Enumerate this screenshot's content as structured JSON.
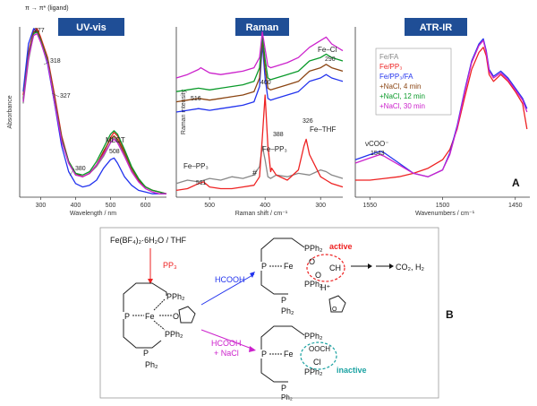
{
  "chart_data": [
    {
      "type": "line",
      "title": "UV-vis",
      "xlabel": "Wavelength / nm",
      "ylabel": "Absorbance",
      "xlim": [
        240,
        660
      ],
      "ylim": [
        0,
        1
      ],
      "xticks": [
        "300",
        "400",
        "500",
        "600"
      ],
      "annotations": [
        "π → π* (ligand)",
        "277",
        "318",
        "327",
        "380",
        "MLCT",
        "508"
      ],
      "series": [
        {
          "name": "Fe/FA",
          "color": "#888888",
          "x": [
            250,
            265,
            280,
            290,
            300,
            320,
            340,
            360,
            380,
            400,
            420,
            440,
            460,
            480,
            500,
            510,
            520,
            540,
            560,
            580,
            600,
            620,
            640,
            660
          ],
          "y": [
            0.55,
            0.8,
            0.96,
            0.98,
            0.93,
            0.8,
            0.55,
            0.33,
            0.2,
            0.13,
            0.12,
            0.14,
            0.18,
            0.24,
            0.32,
            0.35,
            0.33,
            0.25,
            0.16,
            0.1,
            0.06,
            0.04,
            0.03,
            0.02
          ]
        },
        {
          "name": "Fe/PP3",
          "color": "#ee2222",
          "x": [
            250,
            265,
            280,
            290,
            300,
            320,
            340,
            360,
            380,
            400,
            420,
            440,
            460,
            480,
            500,
            510,
            520,
            540,
            560,
            580,
            600,
            620,
            640,
            660
          ],
          "y": [
            0.6,
            0.85,
            0.98,
            0.99,
            0.94,
            0.82,
            0.6,
            0.36,
            0.21,
            0.14,
            0.12,
            0.14,
            0.19,
            0.26,
            0.35,
            0.38,
            0.36,
            0.27,
            0.17,
            0.1,
            0.06,
            0.04,
            0.03,
            0.02
          ]
        },
        {
          "name": "Fe/PP3/FA",
          "color": "#2233ee",
          "x": [
            250,
            265,
            280,
            290,
            300,
            320,
            340,
            360,
            380,
            400,
            420,
            440,
            460,
            480,
            500,
            510,
            520,
            540,
            560,
            580,
            600,
            620,
            640,
            660
          ],
          "y": [
            0.62,
            0.9,
            0.99,
            0.97,
            0.92,
            0.78,
            0.55,
            0.3,
            0.15,
            0.08,
            0.06,
            0.07,
            0.1,
            0.17,
            0.22,
            0.23,
            0.2,
            0.12,
            0.07,
            0.04,
            0.03,
            0.02,
            0.02,
            0.02
          ]
        },
        {
          "name": "+NaCl, 4 min",
          "color": "#8b4513",
          "x": [
            250,
            265,
            280,
            290,
            300,
            320,
            340,
            360,
            380,
            400,
            420,
            440,
            460,
            480,
            500,
            510,
            520,
            540,
            560,
            580,
            600,
            620,
            640,
            660
          ],
          "y": [
            0.58,
            0.84,
            0.97,
            0.98,
            0.93,
            0.81,
            0.58,
            0.35,
            0.21,
            0.14,
            0.12,
            0.14,
            0.19,
            0.27,
            0.34,
            0.36,
            0.34,
            0.26,
            0.17,
            0.1,
            0.06,
            0.04,
            0.03,
            0.02
          ]
        },
        {
          "name": "+NaCl, 12 min",
          "color": "#0a9a2a",
          "x": [
            250,
            265,
            280,
            290,
            300,
            320,
            340,
            360,
            380,
            400,
            420,
            440,
            460,
            480,
            500,
            510,
            520,
            540,
            560,
            580,
            600,
            620,
            640,
            660
          ],
          "y": [
            0.57,
            0.83,
            0.96,
            0.97,
            0.92,
            0.8,
            0.57,
            0.34,
            0.21,
            0.14,
            0.13,
            0.15,
            0.21,
            0.29,
            0.37,
            0.39,
            0.37,
            0.28,
            0.18,
            0.11,
            0.06,
            0.04,
            0.03,
            0.02
          ]
        },
        {
          "name": "+NaCl, 30 min",
          "color": "#cc22cc",
          "x": [
            250,
            265,
            280,
            290,
            300,
            320,
            340,
            360,
            380,
            400,
            420,
            440,
            460,
            480,
            500,
            510,
            520,
            540,
            560,
            580,
            600,
            620,
            640,
            660
          ],
          "y": [
            0.56,
            0.82,
            0.95,
            0.96,
            0.91,
            0.79,
            0.56,
            0.33,
            0.2,
            0.13,
            0.12,
            0.14,
            0.19,
            0.25,
            0.32,
            0.34,
            0.32,
            0.24,
            0.15,
            0.09,
            0.05,
            0.03,
            0.02,
            0.02
          ]
        }
      ]
    },
    {
      "type": "line",
      "title": "Raman",
      "xlabel": "Raman shift / cm⁻¹",
      "ylabel": "Raman intensity",
      "xlim": [
        560,
        260
      ],
      "ylim": [
        0,
        1
      ],
      "xticks": [
        "500",
        "400",
        "300"
      ],
      "annotations": [
        "516",
        "400",
        "Fe–Cl",
        "290",
        "326",
        "Fe–THF",
        "388",
        "Fe–PP₃",
        "Fe–PP₃",
        "511",
        "#"
      ],
      "series": [
        {
          "name": "Fe/FA",
          "color": "#888888",
          "x": [
            560,
            540,
            520,
            500,
            480,
            460,
            440,
            420,
            410,
            405,
            400,
            395,
            390,
            380,
            360,
            340,
            320,
            300,
            290,
            280,
            260
          ],
          "y": [
            0.08,
            0.1,
            0.09,
            0.11,
            0.1,
            0.12,
            0.11,
            0.13,
            0.18,
            0.3,
            0.22,
            0.12,
            0.11,
            0.13,
            0.12,
            0.14,
            0.13,
            0.16,
            0.15,
            0.13,
            0.11
          ]
        },
        {
          "name": "Fe/PP3",
          "color": "#ee2222",
          "x": [
            560,
            540,
            520,
            511,
            500,
            480,
            460,
            440,
            420,
            410,
            405,
            400,
            395,
            390,
            388,
            380,
            360,
            340,
            330,
            326,
            320,
            300,
            290,
            280,
            260
          ],
          "y": [
            0.04,
            0.05,
            0.08,
            0.09,
            0.06,
            0.05,
            0.05,
            0.06,
            0.07,
            0.12,
            0.35,
            0.6,
            0.3,
            0.15,
            0.17,
            0.13,
            0.1,
            0.16,
            0.3,
            0.34,
            0.25,
            0.12,
            0.1,
            0.08,
            0.06
          ]
        },
        {
          "name": "Fe/PP3/FA",
          "color": "#2233ee",
          "x": [
            560,
            540,
            520,
            500,
            480,
            460,
            440,
            420,
            410,
            405,
            400,
            395,
            390,
            380,
            360,
            340,
            320,
            300,
            290,
            280,
            260
          ],
          "y": [
            0.5,
            0.51,
            0.52,
            0.51,
            0.52,
            0.53,
            0.54,
            0.56,
            0.65,
            0.9,
            0.7,
            0.58,
            0.57,
            0.58,
            0.6,
            0.62,
            0.68,
            0.7,
            0.72,
            0.7,
            0.68
          ]
        },
        {
          "name": "+NaCl, 4 min",
          "color": "#8b4513",
          "x": [
            560,
            540,
            520,
            500,
            480,
            460,
            440,
            420,
            410,
            405,
            400,
            395,
            390,
            380,
            360,
            340,
            320,
            300,
            290,
            280,
            260
          ],
          "y": [
            0.56,
            0.57,
            0.58,
            0.57,
            0.58,
            0.59,
            0.6,
            0.62,
            0.7,
            0.93,
            0.76,
            0.64,
            0.63,
            0.64,
            0.66,
            0.68,
            0.74,
            0.76,
            0.78,
            0.76,
            0.74
          ]
        },
        {
          "name": "+NaCl, 12 min",
          "color": "#0a9a2a",
          "x": [
            560,
            540,
            520,
            500,
            480,
            460,
            440,
            420,
            410,
            405,
            400,
            395,
            390,
            380,
            360,
            340,
            320,
            300,
            290,
            280,
            260
          ],
          "y": [
            0.62,
            0.63,
            0.64,
            0.63,
            0.64,
            0.65,
            0.66,
            0.68,
            0.76,
            0.95,
            0.81,
            0.7,
            0.69,
            0.7,
            0.72,
            0.74,
            0.8,
            0.82,
            0.84,
            0.82,
            0.8
          ]
        },
        {
          "name": "+NaCl, 30 min",
          "color": "#cc22cc",
          "x": [
            560,
            540,
            520,
            516,
            500,
            480,
            460,
            440,
            420,
            410,
            405,
            400,
            395,
            390,
            380,
            360,
            340,
            320,
            300,
            290,
            280,
            260
          ],
          "y": [
            0.7,
            0.72,
            0.75,
            0.76,
            0.73,
            0.72,
            0.73,
            0.74,
            0.76,
            0.82,
            0.97,
            0.87,
            0.77,
            0.76,
            0.77,
            0.79,
            0.82,
            0.88,
            0.92,
            0.94,
            0.9,
            0.86
          ]
        }
      ]
    },
    {
      "type": "line",
      "title": "ATR-IR",
      "panel_label": "A",
      "xlabel": "Wavenumbers / cm⁻¹",
      "xlim": [
        1560,
        1440
      ],
      "ylim": [
        0,
        1
      ],
      "xticks": [
        "1550",
        "1500",
        "1450"
      ],
      "legend": [
        "Fe/FA",
        "Fe/PP₃",
        "Fe/PP₃/FA",
        "+NaCl,  4 min",
        "+NaCl, 12 min",
        "+NaCl, 30 min"
      ],
      "annotations": [
        "νCOO⁻",
        "1543"
      ],
      "series": [
        {
          "name": "Fe/PP3",
          "color": "#ee2222",
          "x": [
            1560,
            1550,
            1540,
            1530,
            1520,
            1510,
            1500,
            1495,
            1490,
            1485,
            1480,
            1475,
            1472,
            1470,
            1468,
            1465,
            1460,
            1455,
            1450,
            1445,
            1442
          ],
          "y": [
            0.1,
            0.1,
            0.11,
            0.12,
            0.14,
            0.17,
            0.22,
            0.28,
            0.4,
            0.58,
            0.75,
            0.85,
            0.88,
            0.83,
            0.72,
            0.68,
            0.72,
            0.68,
            0.62,
            0.55,
            0.4
          ]
        },
        {
          "name": "Fe/PP3/FA",
          "color": "#2233ee",
          "x": [
            1560,
            1550,
            1543,
            1540,
            1530,
            1520,
            1510,
            1500,
            1495,
            1490,
            1485,
            1480,
            1475,
            1472,
            1470,
            1468,
            1465,
            1460,
            1455,
            1450,
            1445,
            1442
          ],
          "y": [
            0.22,
            0.25,
            0.27,
            0.26,
            0.2,
            0.14,
            0.12,
            0.16,
            0.26,
            0.42,
            0.62,
            0.8,
            0.9,
            0.93,
            0.86,
            0.75,
            0.71,
            0.74,
            0.7,
            0.64,
            0.58,
            0.52
          ]
        },
        {
          "name": "+NaCl, 30 min",
          "color": "#cc22cc",
          "x": [
            1560,
            1550,
            1543,
            1540,
            1530,
            1520,
            1510,
            1500,
            1495,
            1490,
            1485,
            1480,
            1475,
            1472,
            1470,
            1468,
            1465,
            1460,
            1455,
            1450,
            1445,
            1442
          ],
          "y": [
            0.2,
            0.23,
            0.25,
            0.24,
            0.19,
            0.14,
            0.12,
            0.16,
            0.25,
            0.41,
            0.61,
            0.79,
            0.89,
            0.92,
            0.85,
            0.74,
            0.7,
            0.73,
            0.69,
            0.63,
            0.57,
            0.5
          ]
        }
      ]
    }
  ],
  "scheme": {
    "panel_label": "B",
    "precursor": "Fe(BF₄)₂·6H₂O / THF",
    "reagent1": "PP₃",
    "reagent2": "HCOOH",
    "reagent3a": "HCOOH",
    "reagent3b": "+ NaCl",
    "active_label": "active",
    "inactive_label": "inactive",
    "products": "CO₂, H₂",
    "atoms": {
      "fe": "Fe",
      "p": "P",
      "pph2": "PPh₂",
      "ph2": "Ph₂",
      "o": "O",
      "ch": "CH",
      "h": "H⁺",
      "cl": "Cl",
      "oocf": "OOCH"
    }
  }
}
